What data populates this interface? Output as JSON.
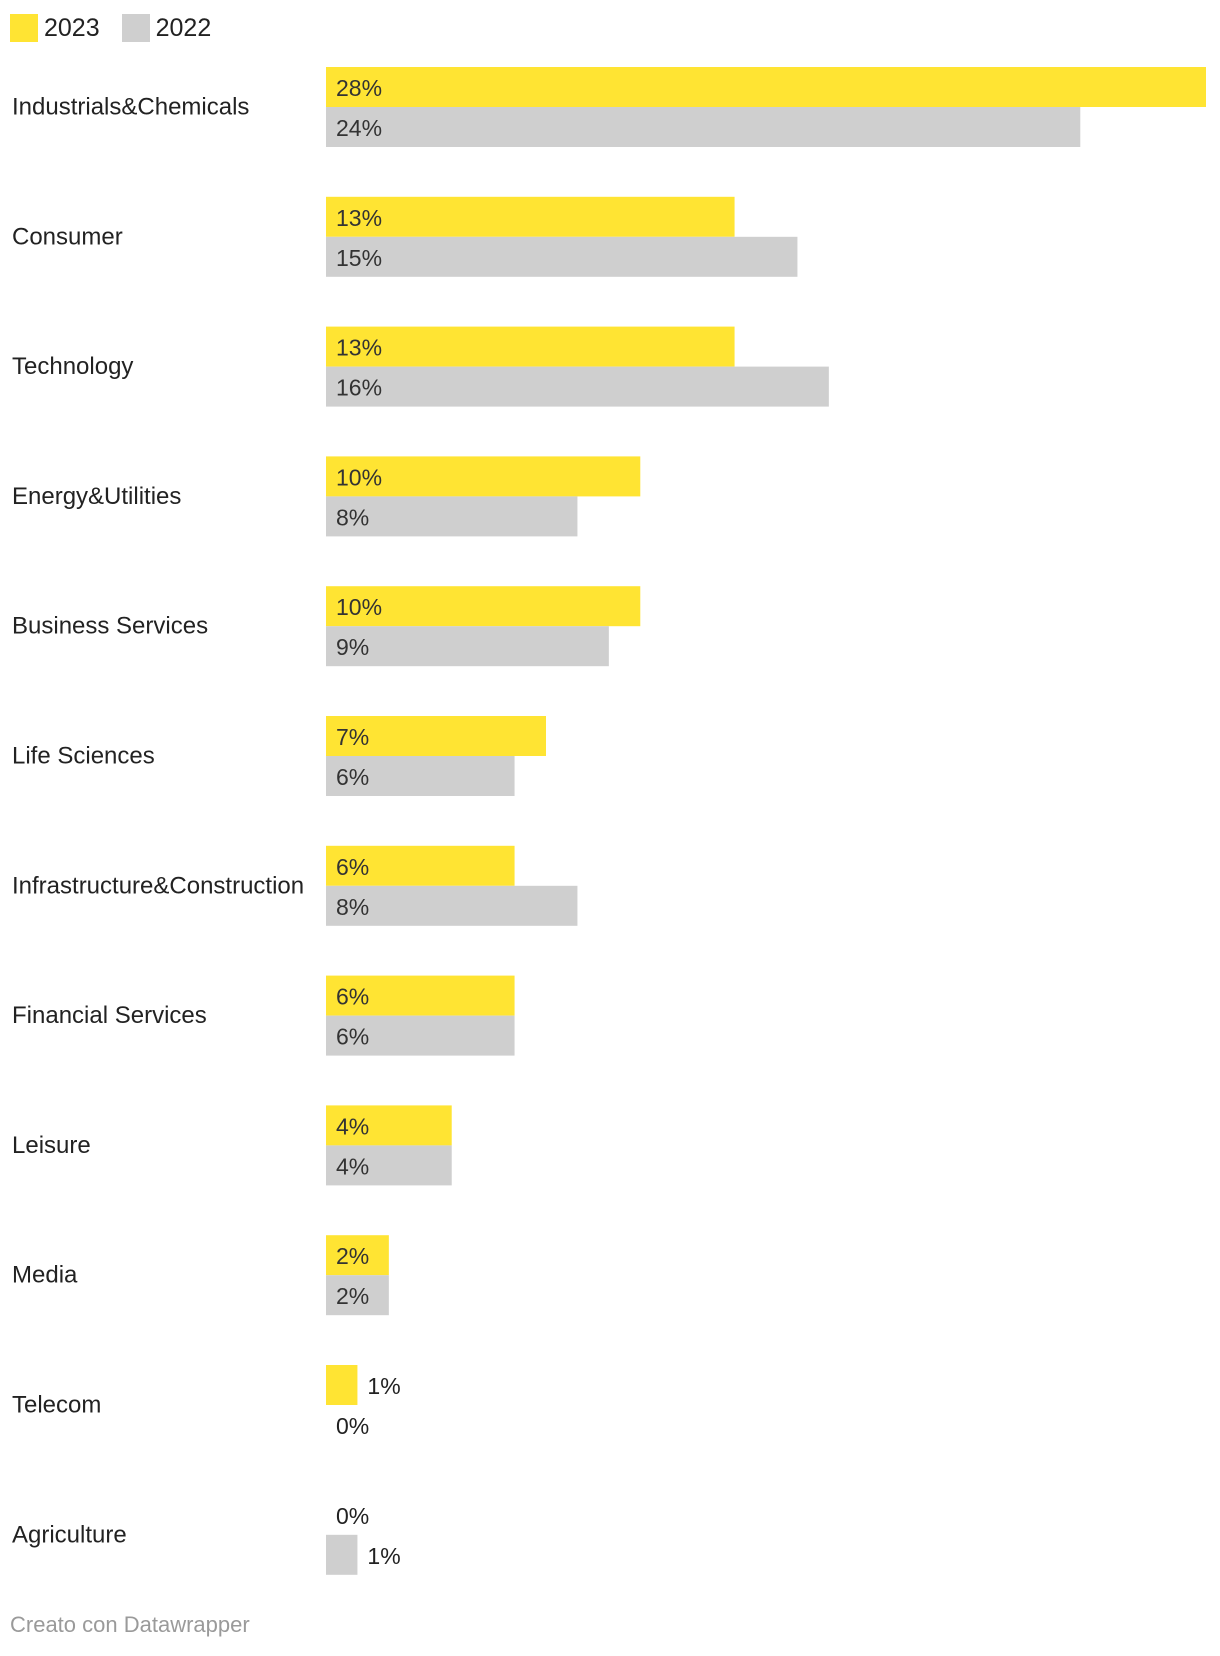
{
  "chart_data": {
    "type": "bar",
    "orientation": "horizontal",
    "categories": [
      "Industrials&Chemicals",
      "Consumer",
      "Technology",
      "Energy&Utilities",
      "Business Services",
      "Life Sciences",
      "Infrastructure&Construction",
      "Financial Services",
      "Leisure",
      "Media",
      "Telecom",
      "Agriculture"
    ],
    "series": [
      {
        "name": "2023",
        "color": "#FFE433",
        "values": [
          28,
          13,
          13,
          10,
          10,
          7,
          6,
          6,
          4,
          2,
          1,
          0
        ],
        "labels": [
          "28%",
          "13%",
          "13%",
          "10%",
          "10%",
          "7%",
          "6%",
          "6%",
          "4%",
          "2%",
          "1%",
          "0%"
        ]
      },
      {
        "name": "2022",
        "color": "#CFCFCF",
        "values": [
          24,
          15,
          16,
          8,
          9,
          6,
          8,
          6,
          4,
          2,
          0,
          1
        ],
        "labels": [
          "24%",
          "15%",
          "16%",
          "8%",
          "9%",
          "6%",
          "8%",
          "6%",
          "4%",
          "2%",
          "0%",
          "1%"
        ]
      }
    ],
    "xlim": [
      0,
      28
    ],
    "grid": false,
    "legend_position": "top-left",
    "title": "",
    "xlabel": "",
    "ylabel": ""
  },
  "credit": "Creato con Datawrapper"
}
